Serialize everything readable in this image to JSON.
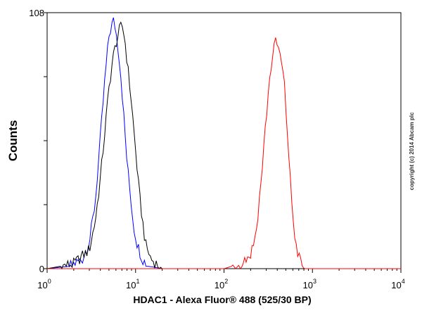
{
  "chart_data": {
    "type": "line",
    "title": "",
    "xlabel": "HDAC1 - Alexa Fluor® 488 (525/30 BP)",
    "ylabel": "Counts",
    "xscale": "log",
    "xlim": [
      1,
      10000
    ],
    "ylim": [
      0,
      108
    ],
    "y_tick_labels": [
      "0",
      "108"
    ],
    "x_tick_labels": [
      {
        "base": "10",
        "exp": "0"
      },
      {
        "base": "10",
        "exp": "1"
      },
      {
        "base": "10",
        "exp": "2"
      },
      {
        "base": "10",
        "exp": "3"
      },
      {
        "base": "10",
        "exp": "4"
      }
    ],
    "grid": false,
    "legend": "none",
    "copyright": "copyright (c) 2014 Abcam plc",
    "series": [
      {
        "color": "#0000ff",
        "x": [
          1.0,
          1.8,
          2.5,
          3.0,
          3.5,
          4.0,
          4.5,
          5.0,
          5.3,
          5.7,
          6.0,
          6.4,
          6.7,
          7.0,
          7.5,
          8.0,
          8.8,
          9.5,
          10.5,
          12.0,
          14.0,
          20.0
        ],
        "y": [
          0,
          1,
          4,
          11,
          28,
          55,
          80,
          98,
          102,
          105,
          100,
          92,
          85,
          76,
          60,
          45,
          30,
          18,
          10,
          4,
          1,
          0
        ]
      },
      {
        "color": "#000000",
        "x": [
          1.0,
          2.0,
          3.0,
          3.5,
          4.0,
          4.5,
          5.0,
          5.5,
          6.0,
          6.5,
          7.0,
          7.5,
          8.0,
          9.0,
          10.0,
          11.0,
          12.0,
          13.0,
          15.0,
          20.0
        ],
        "y": [
          0,
          2,
          8,
          20,
          38,
          58,
          76,
          88,
          95,
          100,
          103,
          98,
          88,
          70,
          50,
          32,
          20,
          10,
          4,
          0
        ]
      },
      {
        "color": "#ff0000",
        "x": [
          100,
          150,
          200,
          230,
          260,
          290,
          320,
          350,
          370,
          390,
          410,
          430,
          450,
          480,
          520,
          560,
          600,
          650,
          700,
          800
        ],
        "y": [
          0,
          2,
          6,
          15,
          35,
          57,
          76,
          89,
          94,
          96,
          93,
          90,
          86,
          78,
          58,
          38,
          22,
          10,
          5,
          0
        ]
      }
    ]
  }
}
